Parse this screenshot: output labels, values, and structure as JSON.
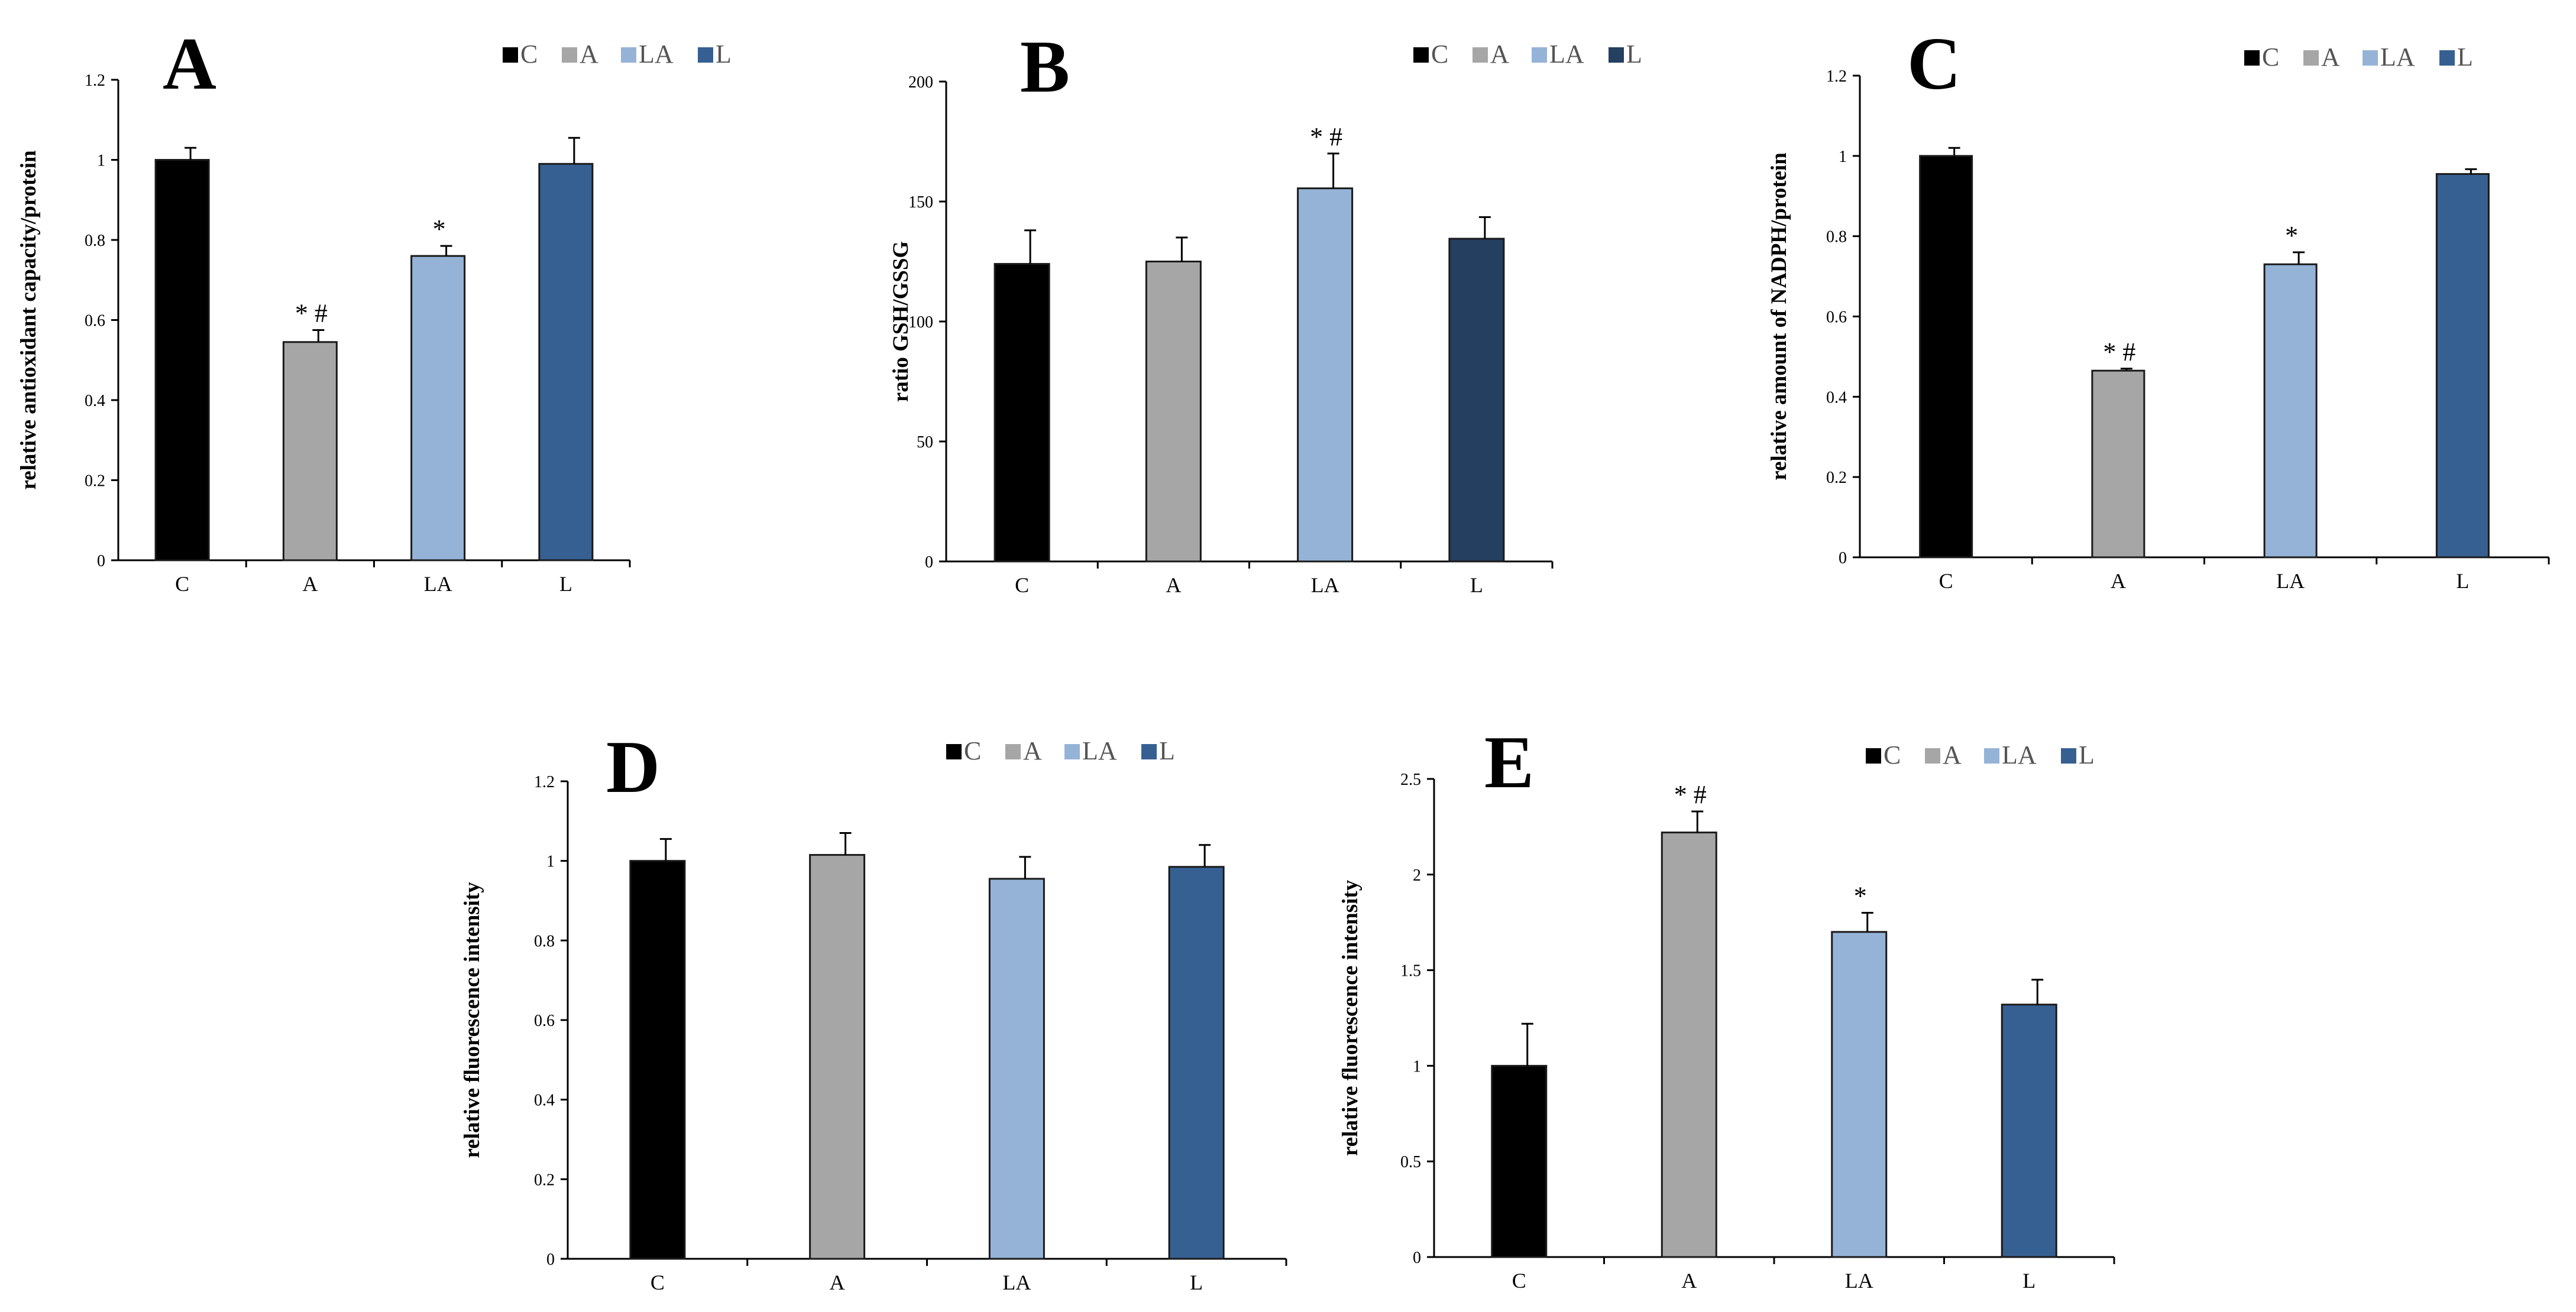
{
  "colors": {
    "C": "#000000",
    "A": "#a6a6a6",
    "LA": "#95b3d7",
    "L": "#376092",
    "L_darker": "#243f60",
    "axis": "#000000",
    "error_bar": "#000000"
  },
  "chart_data": [
    {
      "type": "bar",
      "panel_label": "A",
      "ylabel": "relative antioxidant capacity/protein",
      "categories": [
        "C",
        "A",
        "LA",
        "L"
      ],
      "values": [
        1.0,
        0.545,
        0.76,
        0.99
      ],
      "errors": [
        0.03,
        0.03,
        0.025,
        0.065
      ],
      "annotations": [
        "",
        "*#",
        "*",
        ""
      ],
      "yticks": [
        "0",
        "0.2",
        "0.4",
        "0.6",
        "0.8",
        "1",
        "1.2"
      ],
      "ylim": [
        0,
        1.2
      ],
      "legend": [
        "C",
        "A",
        "LA",
        "L"
      ],
      "legend_position": "top-right",
      "grid": false
    },
    {
      "type": "bar",
      "panel_label": "B",
      "ylabel": "ratio GSH/GSSG",
      "categories": [
        "C",
        "A",
        "LA",
        "L"
      ],
      "values": [
        124,
        125,
        155.5,
        134.5
      ],
      "errors": [
        14,
        10,
        14.5,
        9
      ],
      "annotations": [
        "",
        "",
        "*#",
        ""
      ],
      "yticks": [
        "0",
        "50",
        "100",
        "150",
        "200"
      ],
      "ylim": [
        0,
        200
      ],
      "legend": [
        "C",
        "A",
        "LA",
        "L"
      ],
      "legend_position": "top-right",
      "grid": false
    },
    {
      "type": "bar",
      "panel_label": "C",
      "ylabel": "relative amount of NADPH/protein",
      "categories": [
        "C",
        "A",
        "LA",
        "L"
      ],
      "values": [
        1.0,
        0.465,
        0.73,
        0.955
      ],
      "errors": [
        0.02,
        0.005,
        0.03,
        0.012
      ],
      "annotations": [
        "",
        "*#",
        "*",
        ""
      ],
      "yticks": [
        "0",
        "0.2",
        "0.4",
        "0.6",
        "0.8",
        "1",
        "1.2"
      ],
      "ylim": [
        0,
        1.2
      ],
      "legend": [
        "C",
        "A",
        "LA",
        "L"
      ],
      "legend_position": "top-right",
      "grid": false
    },
    {
      "type": "bar",
      "panel_label": "D",
      "ylabel": "relative fluorescence intensity",
      "categories": [
        "C",
        "A",
        "LA",
        "L"
      ],
      "values": [
        1.0,
        1.015,
        0.955,
        0.985
      ],
      "errors": [
        0.055,
        0.055,
        0.055,
        0.055
      ],
      "annotations": [
        "",
        "",
        "",
        ""
      ],
      "yticks": [
        "0",
        "0.2",
        "0.4",
        "0.6",
        "0.8",
        "1",
        "1.2"
      ],
      "ylim": [
        0,
        1.2
      ],
      "legend": [
        "C",
        "A",
        "LA",
        "L"
      ],
      "legend_position": "top-right",
      "grid": false
    },
    {
      "type": "bar",
      "panel_label": "E",
      "ylabel": "relative fluorescence intensity",
      "categories": [
        "C",
        "A",
        "LA",
        "L"
      ],
      "values": [
        1.0,
        2.22,
        1.7,
        1.32
      ],
      "errors": [
        0.22,
        0.11,
        0.1,
        0.13
      ],
      "annotations": [
        "",
        "*#",
        "*",
        ""
      ],
      "yticks": [
        "0",
        "0.5",
        "1",
        "1.5",
        "2",
        "2.5"
      ],
      "ylim": [
        0,
        2.5
      ],
      "legend": [
        "C",
        "A",
        "LA",
        "L"
      ],
      "legend_position": "top-right",
      "grid": false
    }
  ]
}
